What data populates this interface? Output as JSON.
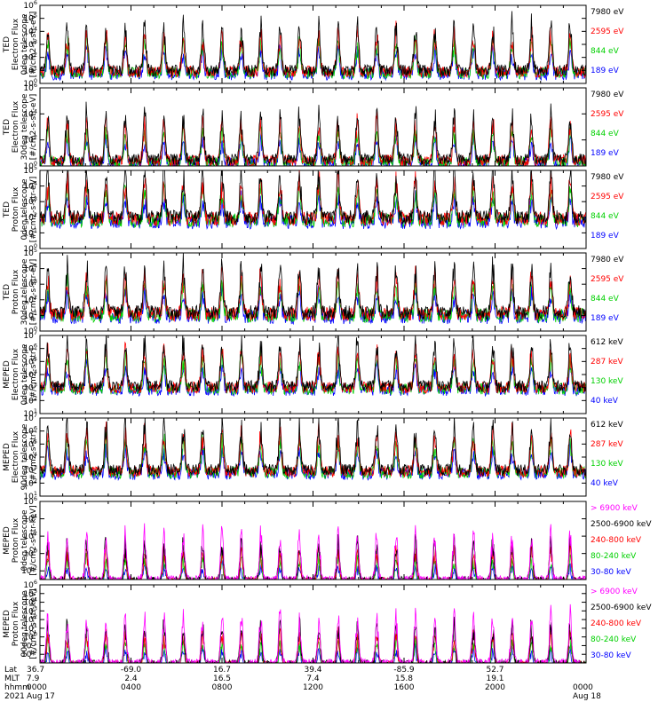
{
  "chart_data": [
    {
      "type": "line",
      "ylabel": [
        "TED",
        "Electron Flux",
        "0deg telescope",
        "[#/cm2-s-str-eV]"
      ],
      "yscale": "log",
      "ylim_exp": [
        0,
        6
      ],
      "ytick_exp": [
        0,
        1,
        2,
        3,
        4,
        5,
        6
      ],
      "base": 1.0,
      "series": [
        {
          "name": "7980 eV",
          "color": "#000000"
        },
        {
          "name": "2595 eV",
          "color": "#ff0000"
        },
        {
          "name": "844 eV",
          "color": "#00d000"
        },
        {
          "name": "189 eV",
          "color": "#0000ff"
        }
      ]
    },
    {
      "type": "line",
      "ylabel": [
        "TED",
        "Electron Flux",
        "30deg telescope",
        "[#/cm2-s-str-eV]"
      ],
      "yscale": "log",
      "ylim_exp": [
        0,
        6
      ],
      "ytick_exp": [
        0,
        2,
        4,
        6
      ],
      "base": 0.5,
      "series": [
        {
          "name": "7980 eV",
          "color": "#000000"
        },
        {
          "name": "2595 eV",
          "color": "#ff0000"
        },
        {
          "name": "844 eV",
          "color": "#00d000"
        },
        {
          "name": "189 eV",
          "color": "#0000ff"
        }
      ]
    },
    {
      "type": "line",
      "ylabel": [
        "TED",
        "Proton Flux",
        "0deg telescope",
        "[#/cm2-s-str-eV]"
      ],
      "yscale": "log",
      "ylim_exp": [
        0,
        5
      ],
      "ytick_exp": [
        0,
        1,
        2,
        3,
        4,
        5
      ],
      "base": 2.0,
      "series": [
        {
          "name": "7980 eV",
          "color": "#000000"
        },
        {
          "name": "2595 eV",
          "color": "#ff0000"
        },
        {
          "name": "844 eV",
          "color": "#00d000"
        },
        {
          "name": "189 eV",
          "color": "#0000ff"
        }
      ]
    },
    {
      "type": "line",
      "ylabel": [
        "TED",
        "Proton Flux",
        "30deg telescope",
        "[#/cm2-s-str-eV]"
      ],
      "yscale": "log",
      "ylim_exp": [
        0,
        5
      ],
      "ytick_exp": [
        0,
        1,
        2,
        3,
        4,
        5
      ],
      "base": 1.2,
      "series": [
        {
          "name": "7980 eV",
          "color": "#000000"
        },
        {
          "name": "2595 eV",
          "color": "#ff0000"
        },
        {
          "name": "844 eV",
          "color": "#00d000"
        },
        {
          "name": "189 eV",
          "color": "#0000ff"
        }
      ]
    },
    {
      "type": "line",
      "ylabel": [
        "MEPED",
        "Electron Flux",
        "0deg telescope",
        "[#/cm2-s-str]"
      ],
      "yscale": "log",
      "ylim_exp": [
        1,
        7
      ],
      "ytick_exp": [
        1,
        2,
        3,
        4,
        5,
        6,
        7
      ],
      "base": 2.1,
      "series": [
        {
          "name": "612 keV",
          "color": "#000000"
        },
        {
          "name": "287 keV",
          "color": "#ff0000"
        },
        {
          "name": "130 keV",
          "color": "#00d000"
        },
        {
          "name": "40 keV",
          "color": "#0000ff"
        }
      ]
    },
    {
      "type": "line",
      "ylabel": [
        "MEPED",
        "Electron Flux",
        "90deg telescope",
        "[#/cm2-s-str]"
      ],
      "yscale": "log",
      "ylim_exp": [
        1,
        7
      ],
      "ytick_exp": [
        1,
        2,
        3,
        4,
        5,
        6,
        7
      ],
      "base": 2.0,
      "series": [
        {
          "name": "612 keV",
          "color": "#000000"
        },
        {
          "name": "287 keV",
          "color": "#ff0000"
        },
        {
          "name": "130 keV",
          "color": "#00d000"
        },
        {
          "name": "40 keV",
          "color": "#0000ff"
        }
      ]
    },
    {
      "type": "line",
      "ylabel": [
        "MEPED",
        "Proton Flux",
        "0deg telescope",
        "[#/cm2-s-str-keV]"
      ],
      "yscale": "log",
      "ylim_exp": [
        -3,
        6
      ],
      "ytick_exp": [
        -2,
        0,
        2,
        4,
        6
      ],
      "base": 0.0,
      "series": [
        {
          "name": "> 6900 keV",
          "color": "#ff00ff"
        },
        {
          "name": "2500-6900 keV",
          "color": "#000000"
        },
        {
          "name": "240-800 keV",
          "color": "#ff0000"
        },
        {
          "name": "80-240 keV",
          "color": "#00d000"
        },
        {
          "name": "30-80 keV",
          "color": "#0000ff"
        }
      ]
    },
    {
      "type": "line",
      "ylabel": [
        "MEPED",
        "Proton Flux",
        "90deg telescope",
        "[#/cm2-s-str-keV]"
      ],
      "yscale": "log",
      "ylim_exp": [
        -3,
        6
      ],
      "ytick_exp": [
        -2,
        -1,
        0,
        1,
        2,
        3,
        4,
        5,
        6
      ],
      "base": 0.0,
      "series": [
        {
          "name": "> 6900 keV",
          "color": "#ff00ff"
        },
        {
          "name": "2500-6900 keV",
          "color": "#000000"
        },
        {
          "name": "240-800 keV",
          "color": "#ff0000"
        },
        {
          "name": "80-240 keV",
          "color": "#00d000"
        },
        {
          "name": "30-80 keV",
          "color": "#0000ff"
        }
      ]
    }
  ],
  "time_axis": {
    "row_labels": [
      "Lat",
      "MLT",
      "hhmm",
      "2021"
    ],
    "ticks": [
      {
        "hour": 0,
        "lat": "36.7",
        "mlt": "7.9",
        "hhmm": "0000",
        "date": "Aug 17"
      },
      {
        "hour": 4,
        "lat": "-69.0",
        "mlt": "2.4",
        "hhmm": "0400",
        "date": ""
      },
      {
        "hour": 8,
        "lat": "16.7",
        "mlt": "16.5",
        "hhmm": "0800",
        "date": ""
      },
      {
        "hour": 12,
        "lat": "39.4",
        "mlt": "7.4",
        "hhmm": "1200",
        "date": ""
      },
      {
        "hour": 16,
        "lat": "-85.9",
        "mlt": "15.8",
        "hhmm": "1600",
        "date": ""
      },
      {
        "hour": 20,
        "lat": "52.7",
        "mlt": "19.1",
        "hhmm": "2000",
        "date": ""
      },
      {
        "hour": 24,
        "lat": "",
        "mlt": "",
        "hhmm": "0000",
        "date": "Aug 18"
      }
    ],
    "xlim_hours": [
      0,
      24
    ]
  }
}
